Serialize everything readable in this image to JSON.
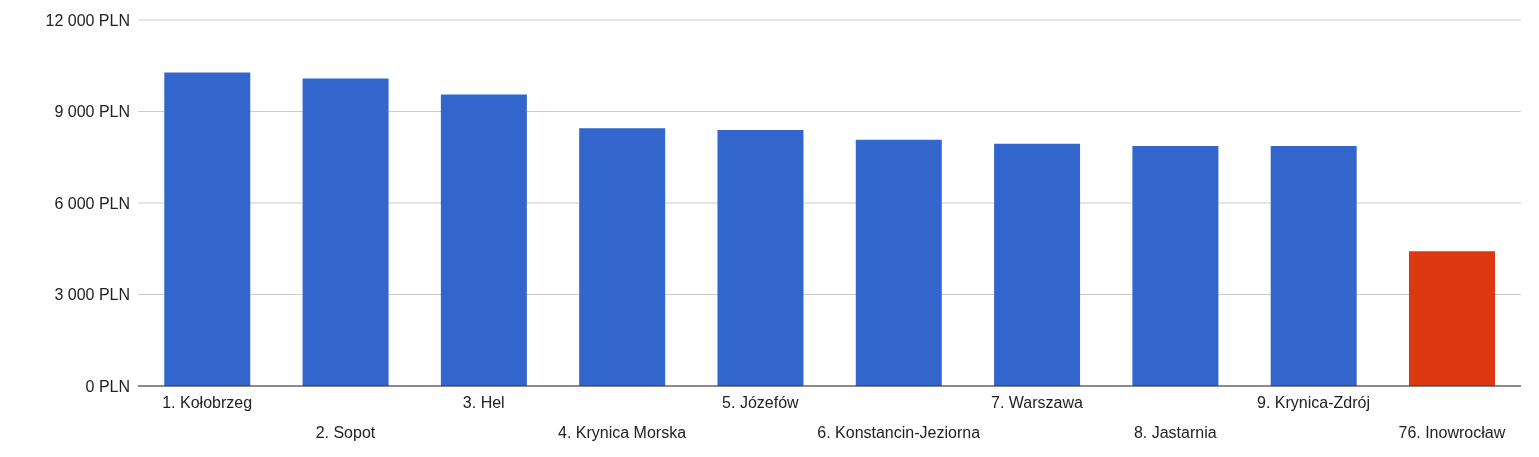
{
  "chart_data": {
    "type": "bar",
    "categories": [
      "1. Kołobrzeg",
      "2. Sopot",
      "3. Hel",
      "4. Krynica Morska",
      "5. Józefów",
      "6. Konstancin-Jeziorna",
      "7. Warszawa",
      "8. Jastarnia",
      "9. Krynica-Zdrój",
      "76. Inowrocław"
    ],
    "values": [
      10280,
      10080,
      9560,
      8450,
      8390,
      8070,
      7940,
      7870,
      7870,
      4420
    ],
    "colors": [
      "#3366cc",
      "#3366cc",
      "#3366cc",
      "#3366cc",
      "#3366cc",
      "#3366cc",
      "#3366cc",
      "#3366cc",
      "#3366cc",
      "#dc3912"
    ],
    "ylim": [
      0,
      12000
    ],
    "yticks": [
      {
        "value": 0,
        "label": "0 PLN"
      },
      {
        "value": 3000,
        "label": "3 000 PLN"
      },
      {
        "value": 6000,
        "label": "6 000 PLN"
      },
      {
        "value": 9000,
        "label": "9 000 PLN"
      },
      {
        "value": 12000,
        "label": "12 000 PLN"
      }
    ],
    "grid": "y"
  }
}
